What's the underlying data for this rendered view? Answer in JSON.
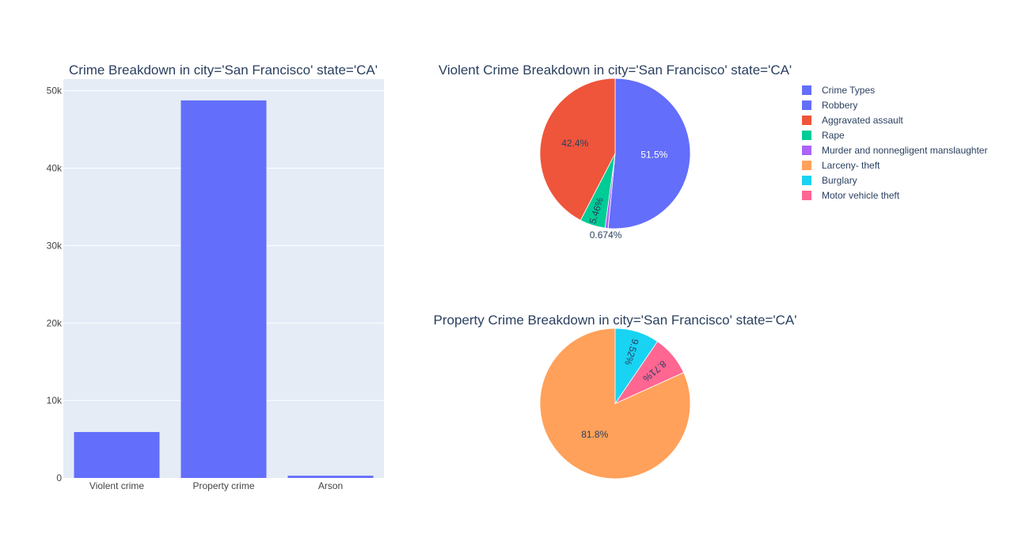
{
  "chart_data": [
    {
      "type": "bar",
      "title": "Crime Breakdown in city='San Francisco' state='CA'",
      "categories": [
        "Violent crime",
        "Property crime",
        "Arson"
      ],
      "values": [
        5930,
        48750,
        290
      ],
      "ylim": [
        0,
        51500
      ],
      "yticks": [
        0,
        10000,
        20000,
        30000,
        40000,
        50000
      ],
      "ytick_labels": [
        "0",
        "10k",
        "20k",
        "30k",
        "40k",
        "50k"
      ],
      "grid": true,
      "bar_color": "#636efa",
      "plot_bg": "#e5ecf6"
    },
    {
      "type": "pie",
      "title": "Violent Crime Breakdown in city='San Francisco' state='CA'",
      "slices": [
        {
          "label": "Robbery",
          "value": 51.5,
          "text": "51.5%",
          "color": "#636efa"
        },
        {
          "label": "Murder and nonnegligent manslaughter",
          "value": 0.674,
          "text": "0.674%",
          "color": "#ab63fa"
        },
        {
          "label": "Rape",
          "value": 5.46,
          "text": "5.46%",
          "color": "#00cc96"
        },
        {
          "label": "Aggravated assault",
          "value": 42.4,
          "text": "42.4%",
          "color": "#ef553b"
        }
      ]
    },
    {
      "type": "pie",
      "title": "Property Crime Breakdown in city='San Francisco' state='CA'",
      "slices": [
        {
          "label": "Larceny- theft",
          "value": 81.8,
          "text": "81.8%",
          "color": "#ffa15a"
        },
        {
          "label": "Motor vehicle theft",
          "value": 8.71,
          "text": "8.71%",
          "color": "#ff6692"
        },
        {
          "label": "Burglary",
          "value": 9.52,
          "text": "9.52%",
          "color": "#19d3f3"
        }
      ]
    }
  ],
  "legend": {
    "placement": "right",
    "items": [
      {
        "label": "Crime Types",
        "color": "#636efa"
      },
      {
        "label": "Robbery",
        "color": "#636efa"
      },
      {
        "label": "Aggravated assault",
        "color": "#ef553b"
      },
      {
        "label": "Rape",
        "color": "#00cc96"
      },
      {
        "label": "Murder and nonnegligent manslaughter",
        "color": "#ab63fa"
      },
      {
        "label": "Larceny- theft",
        "color": "#ffa15a"
      },
      {
        "label": "Burglary",
        "color": "#19d3f3"
      },
      {
        "label": "Motor vehicle theft",
        "color": "#ff6692"
      }
    ]
  }
}
